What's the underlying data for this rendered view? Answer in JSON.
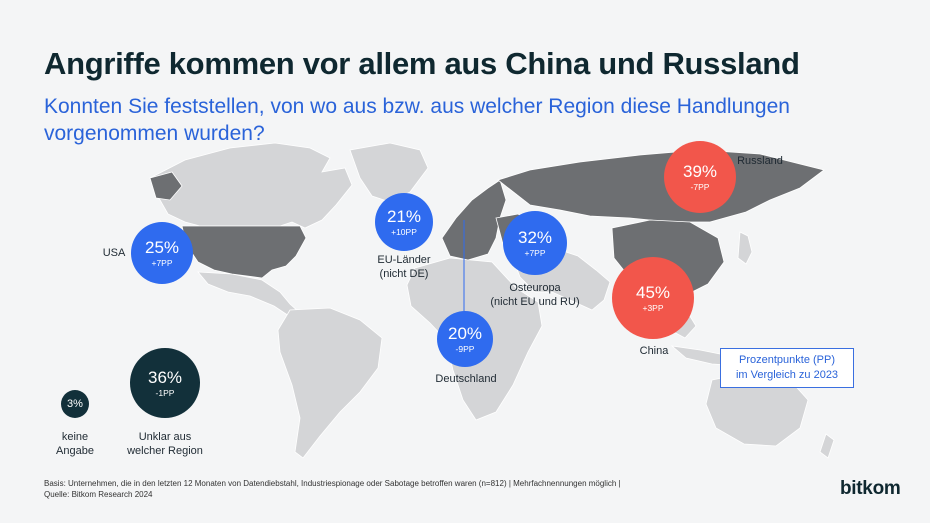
{
  "title": "Angriffe kommen vor allem aus China und Russland",
  "subtitle": "Konnten Sie feststellen, von wo aus bzw. aus welcher Region diese Handlungen vorgenommen wurden?",
  "colors": {
    "blue": "#2f6bef",
    "red": "#f2564b",
    "dark": "#12303a",
    "highlight_land": "#6d6f72",
    "land": "#d4d5d7"
  },
  "regions": {
    "usa": {
      "value": "25%",
      "change": "+7PP",
      "label": "USA"
    },
    "eu": {
      "value": "21%",
      "change": "+10PP",
      "label_line1": "EU-Länder",
      "label_line2": "(nicht DE)"
    },
    "de": {
      "value": "20%",
      "change": "-9PP",
      "label": "Deutschland"
    },
    "osteuropa": {
      "value": "32%",
      "change": "+7PP",
      "label_line1": "Osteuropa",
      "label_line2": "(nicht EU und RU)"
    },
    "russland": {
      "value": "39%",
      "change": "-7PP",
      "label": "Russland"
    },
    "china": {
      "value": "45%",
      "change": "+3PP",
      "label": "China"
    },
    "unklar": {
      "value": "36%",
      "change": "-1PP",
      "label_line1": "Unklar aus",
      "label_line2": "welcher Region"
    },
    "keine": {
      "value": "3%",
      "label_line1": "keine",
      "label_line2": "Angabe"
    }
  },
  "legend": {
    "line1": "Prozentpunkte (PP)",
    "line2": "im Vergleich zu 2023"
  },
  "footer": {
    "basis": "Basis: Unternehmen, die in den letzten 12 Monaten von Datendiebstahl, Industriespionage oder Sabotage betroffen waren (n=812) | Mehrfachnennungen möglich |",
    "source": "Quelle: Bitkom Research 2024"
  },
  "logo": "bitkom"
}
